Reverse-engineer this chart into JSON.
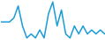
{
  "y": [
    5,
    5,
    5,
    6,
    9,
    4,
    1,
    2,
    1,
    3,
    1,
    7,
    10,
    4,
    8,
    2,
    1,
    4,
    2,
    4,
    2,
    3,
    2,
    3,
    2
  ],
  "line_color": "#1a9cd8",
  "background_color": "#ffffff",
  "linewidth": 1.1
}
